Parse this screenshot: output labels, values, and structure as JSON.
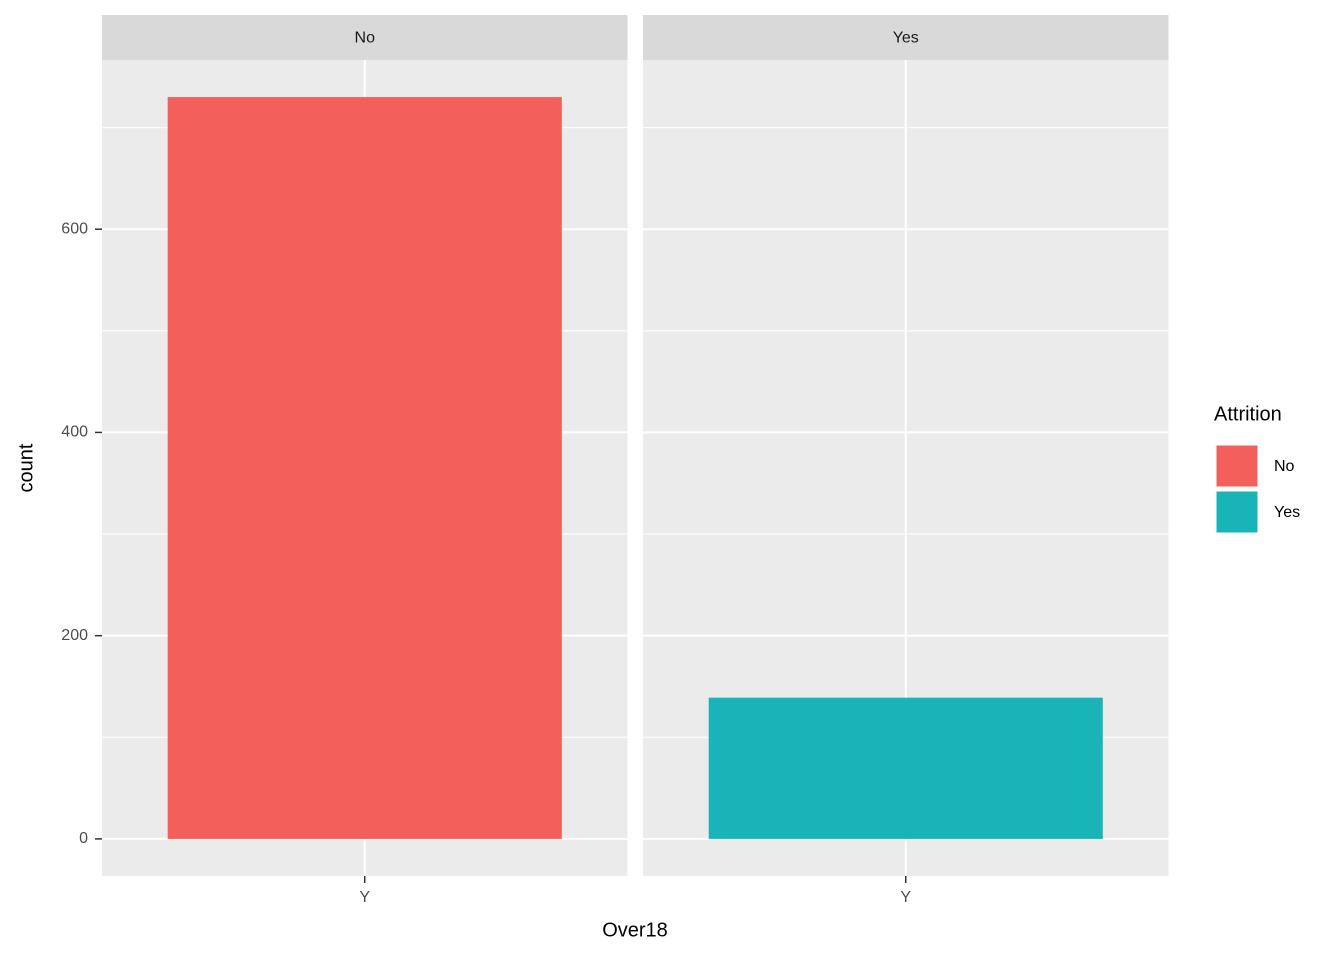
{
  "chart_data": {
    "type": "bar",
    "x_label": "Over18",
    "y_label": "count",
    "legend_title": "Attrition",
    "ylim": [
      -36.5,
      766.5
    ],
    "yticks": [
      0,
      200,
      400,
      600
    ],
    "minor_yticks": [
      100,
      300,
      500,
      700
    ],
    "grid": true,
    "facets": [
      {
        "label": "No",
        "categories": [
          "Y"
        ],
        "series": [
          {
            "name": "No",
            "color": "#F35F5B",
            "values": [
              730
            ]
          }
        ]
      },
      {
        "label": "Yes",
        "categories": [
          "Y"
        ],
        "series": [
          {
            "name": "Yes",
            "color": "#19B4B8",
            "values": [
              139
            ]
          }
        ]
      }
    ]
  }
}
